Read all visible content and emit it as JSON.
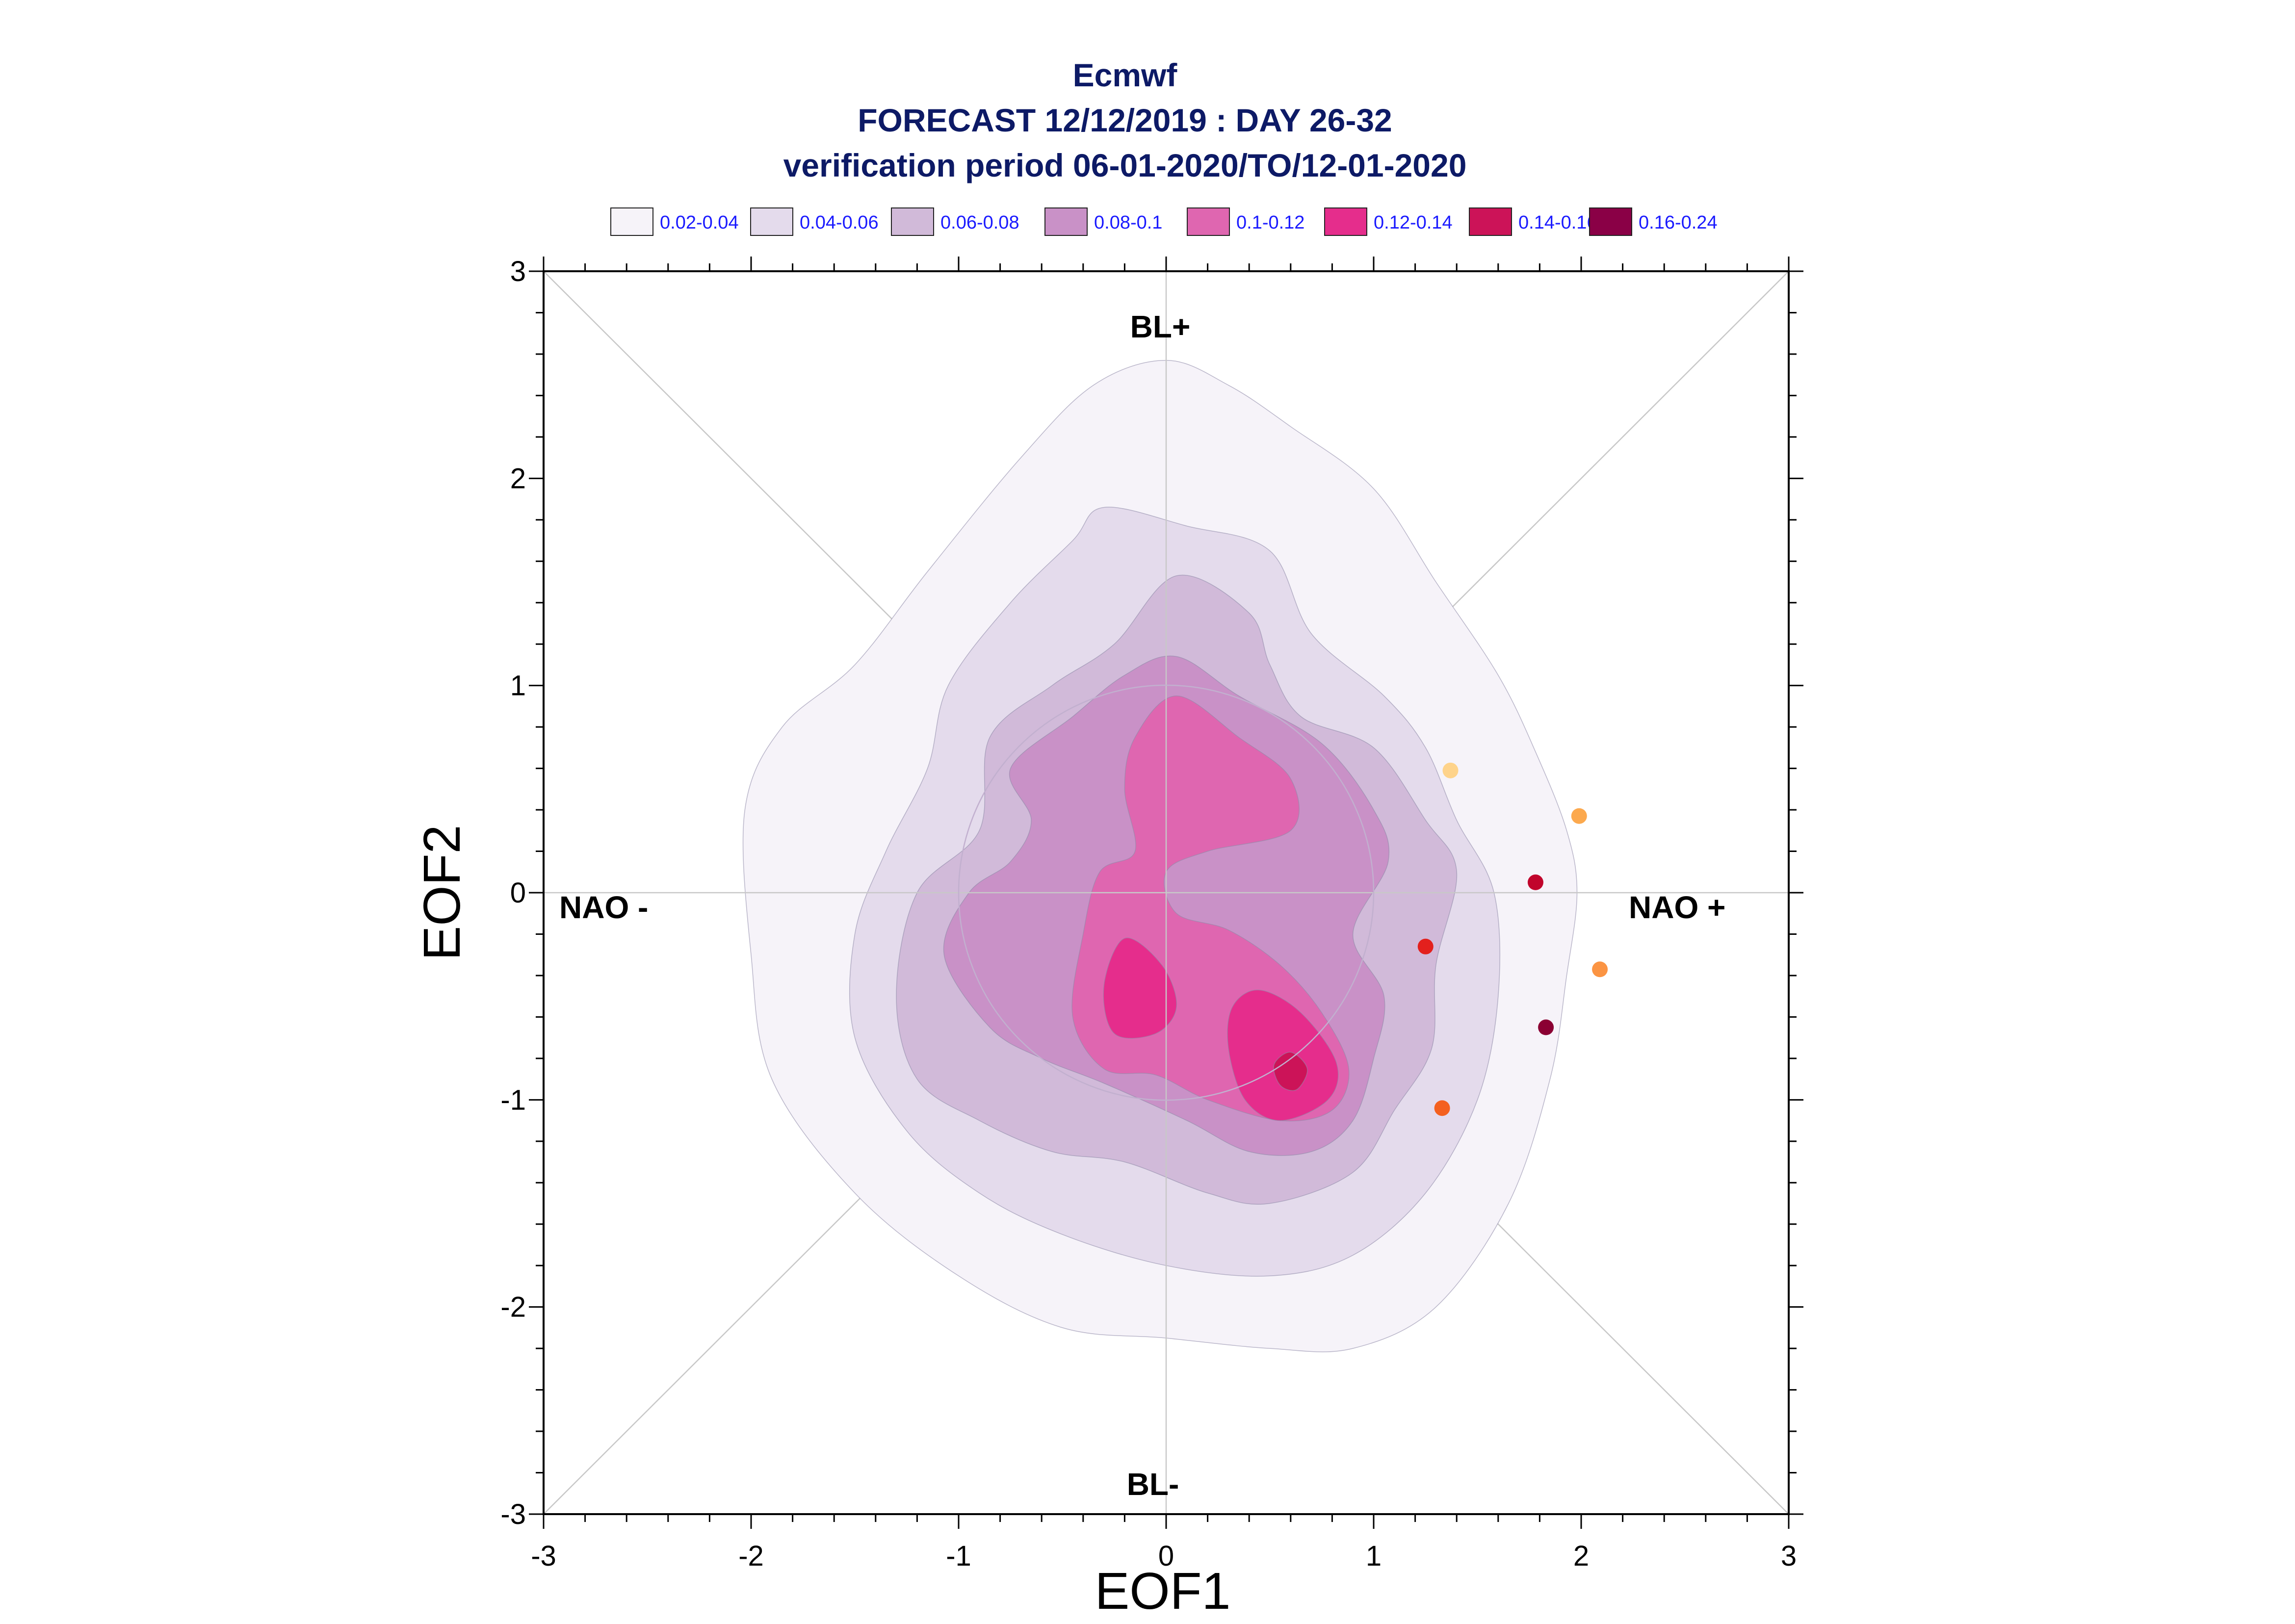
{
  "chart_data": {
    "type": "contour",
    "title": "Ecmwf",
    "subtitle_1": "FORECAST 12/12/2019 : DAY 26-32",
    "subtitle_2": "verification period 06-01-2020/TO/12-01-2020",
    "xlabel": "EOF1",
    "ylabel": "EOF2",
    "xlim": [
      -3,
      3
    ],
    "ylim": [
      -3,
      3
    ],
    "xticks": [
      -3,
      -2,
      -1,
      0,
      1,
      2,
      3
    ],
    "yticks": [
      -3,
      -2,
      -1,
      0,
      1,
      2,
      3
    ],
    "xtick_labels": [
      "-3",
      "-2",
      "-1",
      "0",
      "1",
      "2",
      "3"
    ],
    "ytick_labels": [
      "-3",
      "-2",
      "-1",
      "0",
      "1",
      "2",
      "3"
    ],
    "grid": false,
    "legend_position": "top",
    "regime_labels": {
      "top": "BL+",
      "bottom": "BL-",
      "left": "NAO -",
      "right": "NAO +"
    },
    "levels": [
      {
        "label": "0.02-0.04",
        "color": "#f6f3f9"
      },
      {
        "label": "0.04-0.06",
        "color": "#e4dbec"
      },
      {
        "label": "0.06-0.08",
        "color": "#d1bad9"
      },
      {
        "label": "0.08-0.1",
        "color": "#c991c7"
      },
      {
        "label": "0.1-0.12",
        "color": "#df66b0"
      },
      {
        "label": "0.12-0.14",
        "color": "#e52d8c"
      },
      {
        "label": "0.14-0.16",
        "color": "#cc1358"
      },
      {
        "label": "0.16-0.24",
        "color": "#8a0046"
      }
    ],
    "density_regions": [
      {
        "level": 0,
        "points": [
          [
            0.0,
            2.57
          ],
          [
            0.3,
            2.45
          ],
          [
            0.6,
            2.25
          ],
          [
            1.0,
            1.95
          ],
          [
            1.3,
            1.5
          ],
          [
            1.6,
            1.05
          ],
          [
            1.78,
            0.68
          ],
          [
            1.93,
            0.3
          ],
          [
            1.98,
            0
          ],
          [
            1.93,
            -0.4
          ],
          [
            1.85,
            -0.9
          ],
          [
            1.65,
            -1.5
          ],
          [
            1.3,
            -2.0
          ],
          [
            0.9,
            -2.2
          ],
          [
            0.5,
            -2.2
          ],
          [
            0.0,
            -2.15
          ],
          [
            -0.5,
            -2.1
          ],
          [
            -1.0,
            -1.85
          ],
          [
            -1.5,
            -1.45
          ],
          [
            -1.9,
            -0.9
          ],
          [
            -2.0,
            -0.3
          ],
          [
            -2.03,
            0.4
          ],
          [
            -1.85,
            0.8
          ],
          [
            -1.5,
            1.1
          ],
          [
            -1.15,
            1.55
          ],
          [
            -0.7,
            2.1
          ],
          [
            -0.35,
            2.45
          ]
        ]
      },
      {
        "level": 1,
        "points": [
          [
            -0.3,
            1.86
          ],
          [
            0.1,
            1.77
          ],
          [
            0.5,
            1.65
          ],
          [
            0.7,
            1.25
          ],
          [
            1.05,
            0.95
          ],
          [
            1.25,
            0.7
          ],
          [
            1.4,
            0.35
          ],
          [
            1.58,
            0
          ],
          [
            1.6,
            -0.5
          ],
          [
            1.5,
            -1.0
          ],
          [
            1.25,
            -1.45
          ],
          [
            0.9,
            -1.75
          ],
          [
            0.5,
            -1.85
          ],
          [
            0.0,
            -1.8
          ],
          [
            -0.5,
            -1.65
          ],
          [
            -0.9,
            -1.45
          ],
          [
            -1.25,
            -1.15
          ],
          [
            -1.5,
            -0.7
          ],
          [
            -1.5,
            -0.2
          ],
          [
            -1.35,
            0.2
          ],
          [
            -1.15,
            0.6
          ],
          [
            -1.05,
            1.0
          ],
          [
            -0.75,
            1.4
          ],
          [
            -0.45,
            1.7
          ]
        ]
      },
      {
        "level": 2,
        "points": [
          [
            0.05,
            1.53
          ],
          [
            0.4,
            1.35
          ],
          [
            0.5,
            1.1
          ],
          [
            0.65,
            0.85
          ],
          [
            1.0,
            0.7
          ],
          [
            1.25,
            0.35
          ],
          [
            1.4,
            0.1
          ],
          [
            1.3,
            -0.35
          ],
          [
            1.28,
            -0.75
          ],
          [
            1.1,
            -1.05
          ],
          [
            0.9,
            -1.35
          ],
          [
            0.5,
            -1.5
          ],
          [
            0.2,
            -1.45
          ],
          [
            -0.2,
            -1.3
          ],
          [
            -0.55,
            -1.25
          ],
          [
            -0.9,
            -1.1
          ],
          [
            -1.2,
            -0.9
          ],
          [
            -1.3,
            -0.5
          ],
          [
            -1.2,
            0.0
          ],
          [
            -0.9,
            0.3
          ],
          [
            -0.85,
            0.75
          ],
          [
            -0.55,
            1.0
          ],
          [
            -0.25,
            1.2
          ]
        ]
      },
      {
        "level": 3,
        "points": [
          [
            0.05,
            1.14
          ],
          [
            0.35,
            0.95
          ],
          [
            0.75,
            0.72
          ],
          [
            1.0,
            0.4
          ],
          [
            1.07,
            0.15
          ],
          [
            0.9,
            -0.2
          ],
          [
            1.05,
            -0.5
          ],
          [
            1.0,
            -0.8
          ],
          [
            0.9,
            -1.1
          ],
          [
            0.7,
            -1.25
          ],
          [
            0.4,
            -1.25
          ],
          [
            0.1,
            -1.1
          ],
          [
            -0.3,
            -0.92
          ],
          [
            -0.6,
            -0.8
          ],
          [
            -0.85,
            -0.65
          ],
          [
            -1.07,
            -0.3
          ],
          [
            -0.95,
            0.0
          ],
          [
            -0.75,
            0.15
          ],
          [
            -0.65,
            0.35
          ],
          [
            -0.75,
            0.6
          ],
          [
            -0.45,
            0.85
          ],
          [
            -0.2,
            1.05
          ]
        ]
      },
      {
        "level": 4,
        "points": [
          [
            0.05,
            0.95
          ],
          [
            0.35,
            0.75
          ],
          [
            0.6,
            0.55
          ],
          [
            0.6,
            0.3
          ],
          [
            0.2,
            0.2
          ],
          [
            0.0,
            0.1
          ],
          [
            0.05,
            -0.1
          ],
          [
            0.3,
            -0.18
          ],
          [
            0.55,
            -0.35
          ],
          [
            0.75,
            -0.58
          ],
          [
            0.88,
            -0.85
          ],
          [
            0.8,
            -1.05
          ],
          [
            0.55,
            -1.1
          ],
          [
            0.2,
            -1.0
          ],
          [
            -0.05,
            -0.88
          ],
          [
            -0.3,
            -0.85
          ],
          [
            -0.45,
            -0.6
          ],
          [
            -0.4,
            -0.2
          ],
          [
            -0.32,
            0.1
          ],
          [
            -0.15,
            0.2
          ],
          [
            -0.2,
            0.5
          ],
          [
            -0.15,
            0.75
          ]
        ]
      },
      {
        "level": 5,
        "points": [
          [
            -0.2,
            -0.22
          ],
          [
            -0.02,
            -0.35
          ],
          [
            0.05,
            -0.55
          ],
          [
            -0.05,
            -0.68
          ],
          [
            -0.25,
            -0.68
          ],
          [
            -0.3,
            -0.45
          ]
        ]
      },
      {
        "level": 5,
        "points": [
          [
            0.45,
            -0.47
          ],
          [
            0.65,
            -0.58
          ],
          [
            0.82,
            -0.82
          ],
          [
            0.78,
            -1.0
          ],
          [
            0.55,
            -1.1
          ],
          [
            0.38,
            -1.0
          ],
          [
            0.3,
            -0.75
          ],
          [
            0.32,
            -0.55
          ]
        ]
      },
      {
        "level": 6,
        "points": [
          [
            0.6,
            -0.77
          ],
          [
            0.68,
            -0.85
          ],
          [
            0.63,
            -0.95
          ],
          [
            0.55,
            -0.93
          ],
          [
            0.52,
            -0.83
          ]
        ]
      }
    ],
    "points": [
      {
        "x": 1.37,
        "y": 0.59,
        "color": "#fed38b"
      },
      {
        "x": 1.99,
        "y": 0.37,
        "color": "#fca94e"
      },
      {
        "x": 1.78,
        "y": 0.05,
        "color": "#c1042c"
      },
      {
        "x": 1.25,
        "y": -0.26,
        "color": "#e3201d"
      },
      {
        "x": 2.09,
        "y": -0.37,
        "color": "#fb9443"
      },
      {
        "x": 1.83,
        "y": -0.65,
        "color": "#8b0033"
      },
      {
        "x": 1.33,
        "y": -1.04,
        "color": "#f4601f"
      }
    ]
  }
}
